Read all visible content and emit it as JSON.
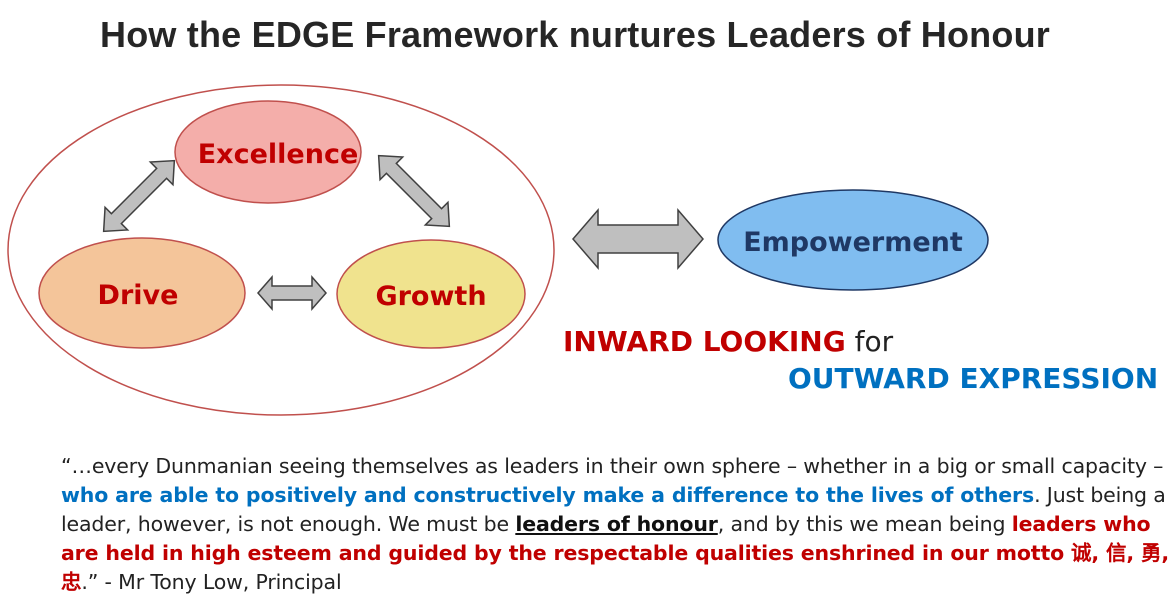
{
  "title": "How the EDGE Framework nurtures Leaders of Honour",
  "nodes": {
    "excellence": "Excellence",
    "drive": "Drive",
    "growth": "Growth",
    "empowerment": "Empowerment"
  },
  "tagline": {
    "inward": "INWARD LOOKING",
    "for": "for",
    "outward": "OUTWARD EXPRESSION"
  },
  "quote": {
    "part1": "“…every Dunmanian seeing themselves as leaders in their own sphere – whether in a big or small capacity – ",
    "highlight1": "who are able to positively and constructively make a difference to the lives of others",
    "part2": ". Just being a leader, however, is not enough. We must be ",
    "underline": "leaders of honour",
    "part3": ", and by this we mean being ",
    "highlight2": "leaders who are held in high esteem and guided by the respectable qualities enshrined in our motto 诚, 信, 勇, 忠",
    "part4": ".” - Mr Tony Low, Principal"
  },
  "colors": {
    "excellence_fill": "#f4aeaa",
    "drive_fill": "#f4c59a",
    "growth_fill": "#f0e38e",
    "empowerment_fill": "#80bdf0",
    "node_text_red": "#c00000",
    "node_text_navy": "#1f3864",
    "arrow_fill": "#bfbfbf",
    "outline_red": "#c0504d"
  }
}
